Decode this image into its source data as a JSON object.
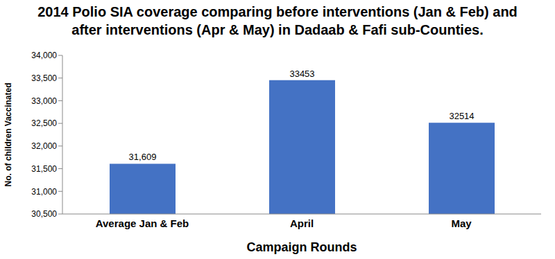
{
  "chart_data": {
    "type": "bar",
    "title": "2014 Polio SIA coverage comparing before interventions (Jan & Feb) and after interventions (Apr & May) in Dadaab & Fafi sub-Counties.",
    "x_label": "Campaign Rounds",
    "y_label": "No. of children Vaccinated",
    "categories": [
      "Average Jan & Feb",
      "April",
      "May"
    ],
    "values": [
      31609,
      33453,
      32514
    ],
    "value_labels": [
      "31,609",
      "33453",
      "32514"
    ],
    "color": "#4472c4",
    "ylim": [
      30500,
      34000
    ],
    "yticks": [
      {
        "value": 30500,
        "label": "30,500"
      },
      {
        "value": 31000,
        "label": "31,000"
      },
      {
        "value": 31500,
        "label": "31,500"
      },
      {
        "value": 32000,
        "label": "32,000"
      },
      {
        "value": 32500,
        "label": "32,500"
      },
      {
        "value": 33000,
        "label": "33,000"
      },
      {
        "value": 33500,
        "label": "33,500"
      },
      {
        "value": 34000,
        "label": "34,000"
      }
    ],
    "grid": false,
    "data_labels": true
  }
}
